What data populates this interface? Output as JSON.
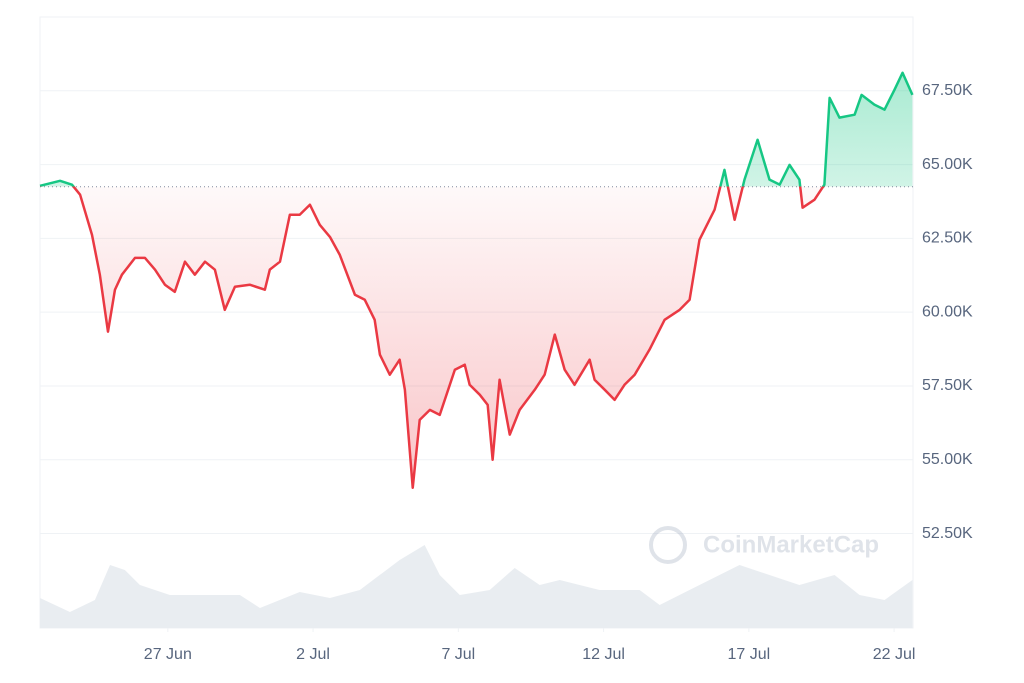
{
  "chart_data": {
    "type": "line",
    "watermark": "CoinMarketCap",
    "x": [
      22.6,
      23.29,
      23.7,
      23.98,
      24.39,
      24.66,
      24.94,
      25.18,
      25.42,
      25.87,
      26.21,
      26.56,
      26.9,
      27.24,
      27.59,
      27.93,
      28.28,
      28.62,
      28.96,
      29.31,
      29.82,
      30.34,
      30.51,
      30.86,
      31.2,
      31.54,
      31.89,
      32.23,
      32.58,
      32.92,
      33.44,
      33.78,
      34.12,
      34.3,
      34.64,
      34.98,
      35.16,
      35.43,
      35.67,
      36.02,
      36.36,
      36.88,
      37.22,
      37.39,
      37.74,
      38.01,
      38.18,
      38.42,
      38.77,
      39.11,
      39.63,
      39.97,
      40.32,
      40.66,
      41.0,
      41.52,
      41.69,
      42.04,
      42.38,
      42.72,
      43.07,
      43.58,
      44.1,
      44.62,
      44.96,
      45.3,
      45.82,
      46.16,
      46.51,
      46.85,
      47.3,
      47.71,
      48.06,
      48.4,
      48.74,
      48.85,
      49.26,
      49.6,
      49.78,
      50.12,
      50.64,
      50.88,
      51.32,
      51.67,
      52.01,
      52.29,
      52.63
    ],
    "values": [
      64280,
      64450,
      64320,
      63980,
      62620,
      61270,
      59340,
      60760,
      61270,
      61840,
      61840,
      61440,
      60930,
      60690,
      61710,
      61270,
      61710,
      61440,
      60080,
      60860,
      60930,
      60760,
      61440,
      61710,
      63300,
      63300,
      63640,
      62960,
      62550,
      61940,
      60590,
      60420,
      59740,
      58560,
      57880,
      58390,
      57370,
      54050,
      56350,
      56690,
      56520,
      58050,
      58220,
      57540,
      57200,
      56860,
      55000,
      57710,
      55850,
      56690,
      57370,
      57880,
      59240,
      58050,
      57540,
      58390,
      57710,
      57370,
      57030,
      57540,
      57880,
      58730,
      59740,
      60080,
      60420,
      62450,
      63470,
      64820,
      63130,
      64490,
      65840,
      64490,
      64320,
      64990,
      64490,
      63540,
      63810,
      64320,
      67260,
      66590,
      66690,
      67360,
      67030,
      66860,
      67530,
      68110,
      67360
    ],
    "baseline": 64250,
    "up_color": "#16c784",
    "down_color": "#ea3943",
    "volume": {
      "color": "#e9edf1",
      "x": [
        22.6,
        23.63,
        24.49,
        25.01,
        25.52,
        26.04,
        27.07,
        28.1,
        29.48,
        30.17,
        31.54,
        32.58,
        33.61,
        34.98,
        35.84,
        36.36,
        37.05,
        38.08,
        38.94,
        39.8,
        40.49,
        41.86,
        43.24,
        43.93,
        45.3,
        46.68,
        47.71,
        48.74,
        49.95,
        50.81,
        51.67,
        52.63
      ],
      "values": [
        30,
        16,
        28,
        63,
        58,
        43,
        33,
        33,
        33,
        20,
        36,
        30,
        38,
        68,
        83,
        53,
        33,
        38,
        60,
        43,
        48,
        38,
        38,
        23,
        43,
        63,
        53,
        43,
        53,
        33,
        28,
        48
      ],
      "lim": [
        0,
        100
      ]
    },
    "xlim": [
      22.6,
      52.65
    ],
    "xticks": [
      {
        "value": 27,
        "label": "27 Jun"
      },
      {
        "value": 32,
        "label": "2 Jul"
      },
      {
        "value": 37,
        "label": "7 Jul"
      },
      {
        "value": 42,
        "label": "12 Jul"
      },
      {
        "value": 47,
        "label": "17 Jul"
      },
      {
        "value": 52,
        "label": "22 Jul"
      }
    ],
    "ylim": [
      49300,
      70000
    ],
    "yticks": [
      {
        "value": 52500,
        "label": "52.50K"
      },
      {
        "value": 55000,
        "label": "55.00K"
      },
      {
        "value": 57500,
        "label": "57.50K"
      },
      {
        "value": 60000,
        "label": "60.00K"
      },
      {
        "value": 62500,
        "label": "62.50K"
      },
      {
        "value": 65000,
        "label": "65.00K"
      },
      {
        "value": 67500,
        "label": "67.50K"
      }
    ],
    "grid": true
  }
}
